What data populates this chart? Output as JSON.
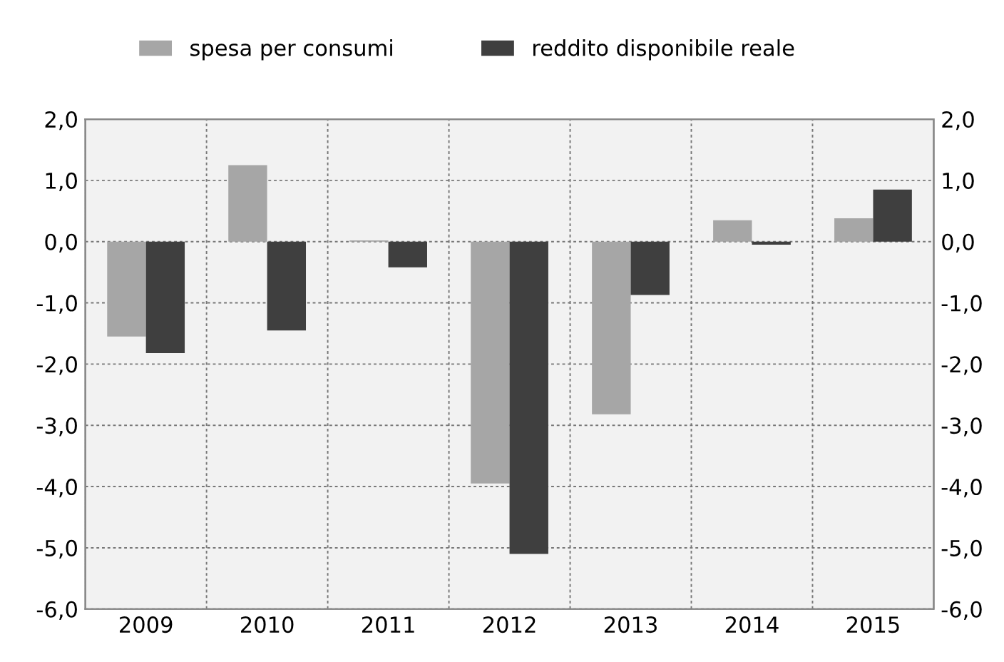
{
  "chart_data": {
    "type": "bar",
    "categories": [
      "2009",
      "2010",
      "2011",
      "2012",
      "2013",
      "2014",
      "2015"
    ],
    "series": [
      {
        "name": "spesa per consumi",
        "color": "#a6a6a6",
        "values": [
          -1.55,
          1.25,
          0.02,
          -3.95,
          -2.82,
          0.35,
          0.38
        ]
      },
      {
        "name": "reddito disponibile reale",
        "color": "#3f3f3f",
        "values": [
          -1.82,
          -1.45,
          -0.42,
          -5.1,
          -0.87,
          -0.05,
          0.85
        ]
      }
    ],
    "ylim": [
      -6,
      2
    ],
    "yticks": [
      {
        "value": -6,
        "label": "-6,0"
      },
      {
        "value": -5,
        "label": "-5,0"
      },
      {
        "value": -4,
        "label": "-4,0"
      },
      {
        "value": -3,
        "label": "-3,0"
      },
      {
        "value": -2,
        "label": "-2,0"
      },
      {
        "value": -1,
        "label": "-1,0"
      },
      {
        "value": 0,
        "label": "0,0"
      },
      {
        "value": 1,
        "label": "1,0"
      },
      {
        "value": 2,
        "label": "2,0"
      }
    ],
    "y2lim": [
      -6,
      2
    ],
    "y2ticks": [
      {
        "value": -6,
        "label": "-6,0"
      },
      {
        "value": -5,
        "label": "-5,0"
      },
      {
        "value": -4,
        "label": "-4,0"
      },
      {
        "value": -3,
        "label": "-3,0"
      },
      {
        "value": -2,
        "label": "-2,0"
      },
      {
        "value": -1,
        "label": "-1,0"
      },
      {
        "value": 0,
        "label": "0,0"
      },
      {
        "value": 1,
        "label": "1,0"
      },
      {
        "value": 2,
        "label": "2,0"
      }
    ],
    "grid": true,
    "legend": "top"
  }
}
